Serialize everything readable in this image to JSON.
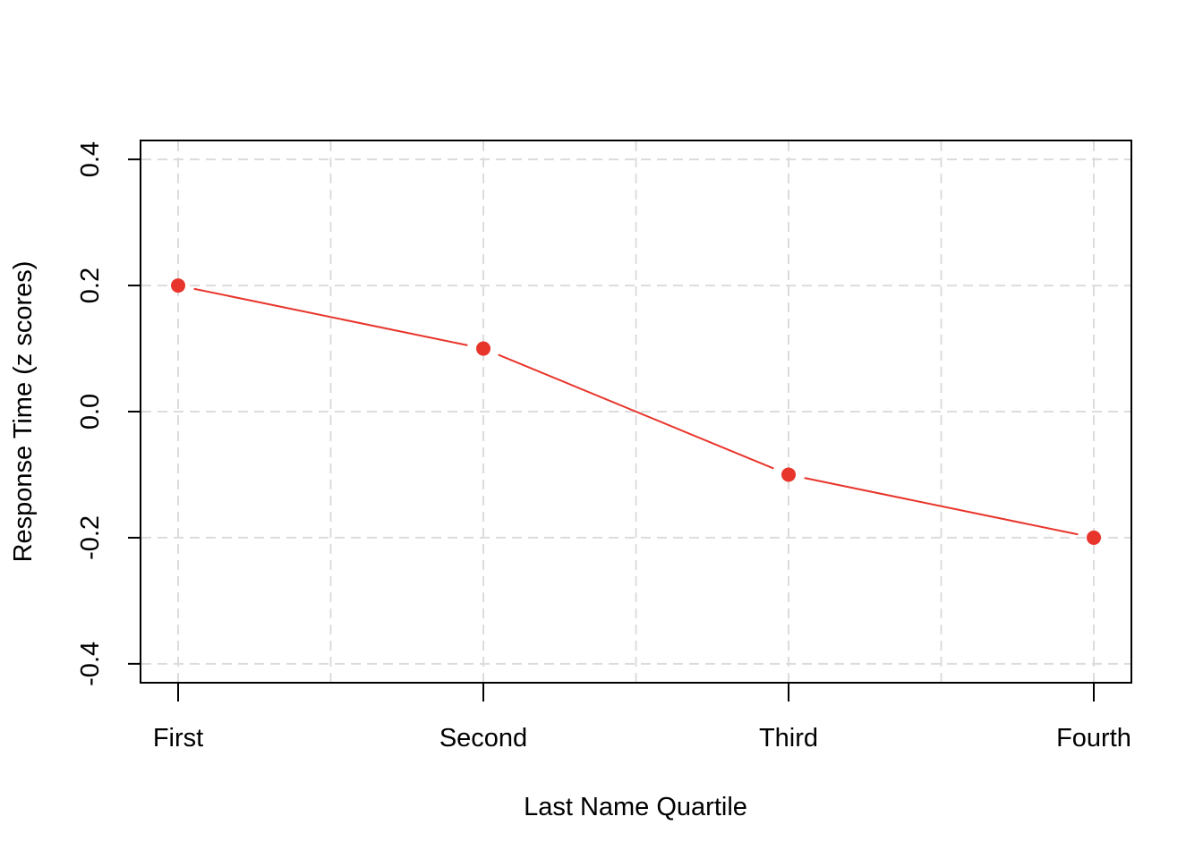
{
  "chart_data": {
    "type": "line",
    "title": "",
    "xlabel": "Last Name Quartile",
    "ylabel": "Response Time (z scores)",
    "categories": [
      "First",
      "Second",
      "Third",
      "Fourth"
    ],
    "series": [
      {
        "values": [
          0.2,
          0.1,
          -0.1,
          -0.2
        ],
        "color": "#e8352b"
      }
    ],
    "ylim": [
      -0.43,
      0.43
    ],
    "yticks": [
      -0.4,
      -0.2,
      0.0,
      0.2,
      0.4
    ],
    "ytick_labels": [
      "-0.4",
      "-0.2",
      "0.0",
      "0.2",
      "0.4"
    ],
    "grid": true,
    "grid_style": "dashed",
    "grid_color": "#dcdcdc",
    "point_style": "filled-circle"
  }
}
